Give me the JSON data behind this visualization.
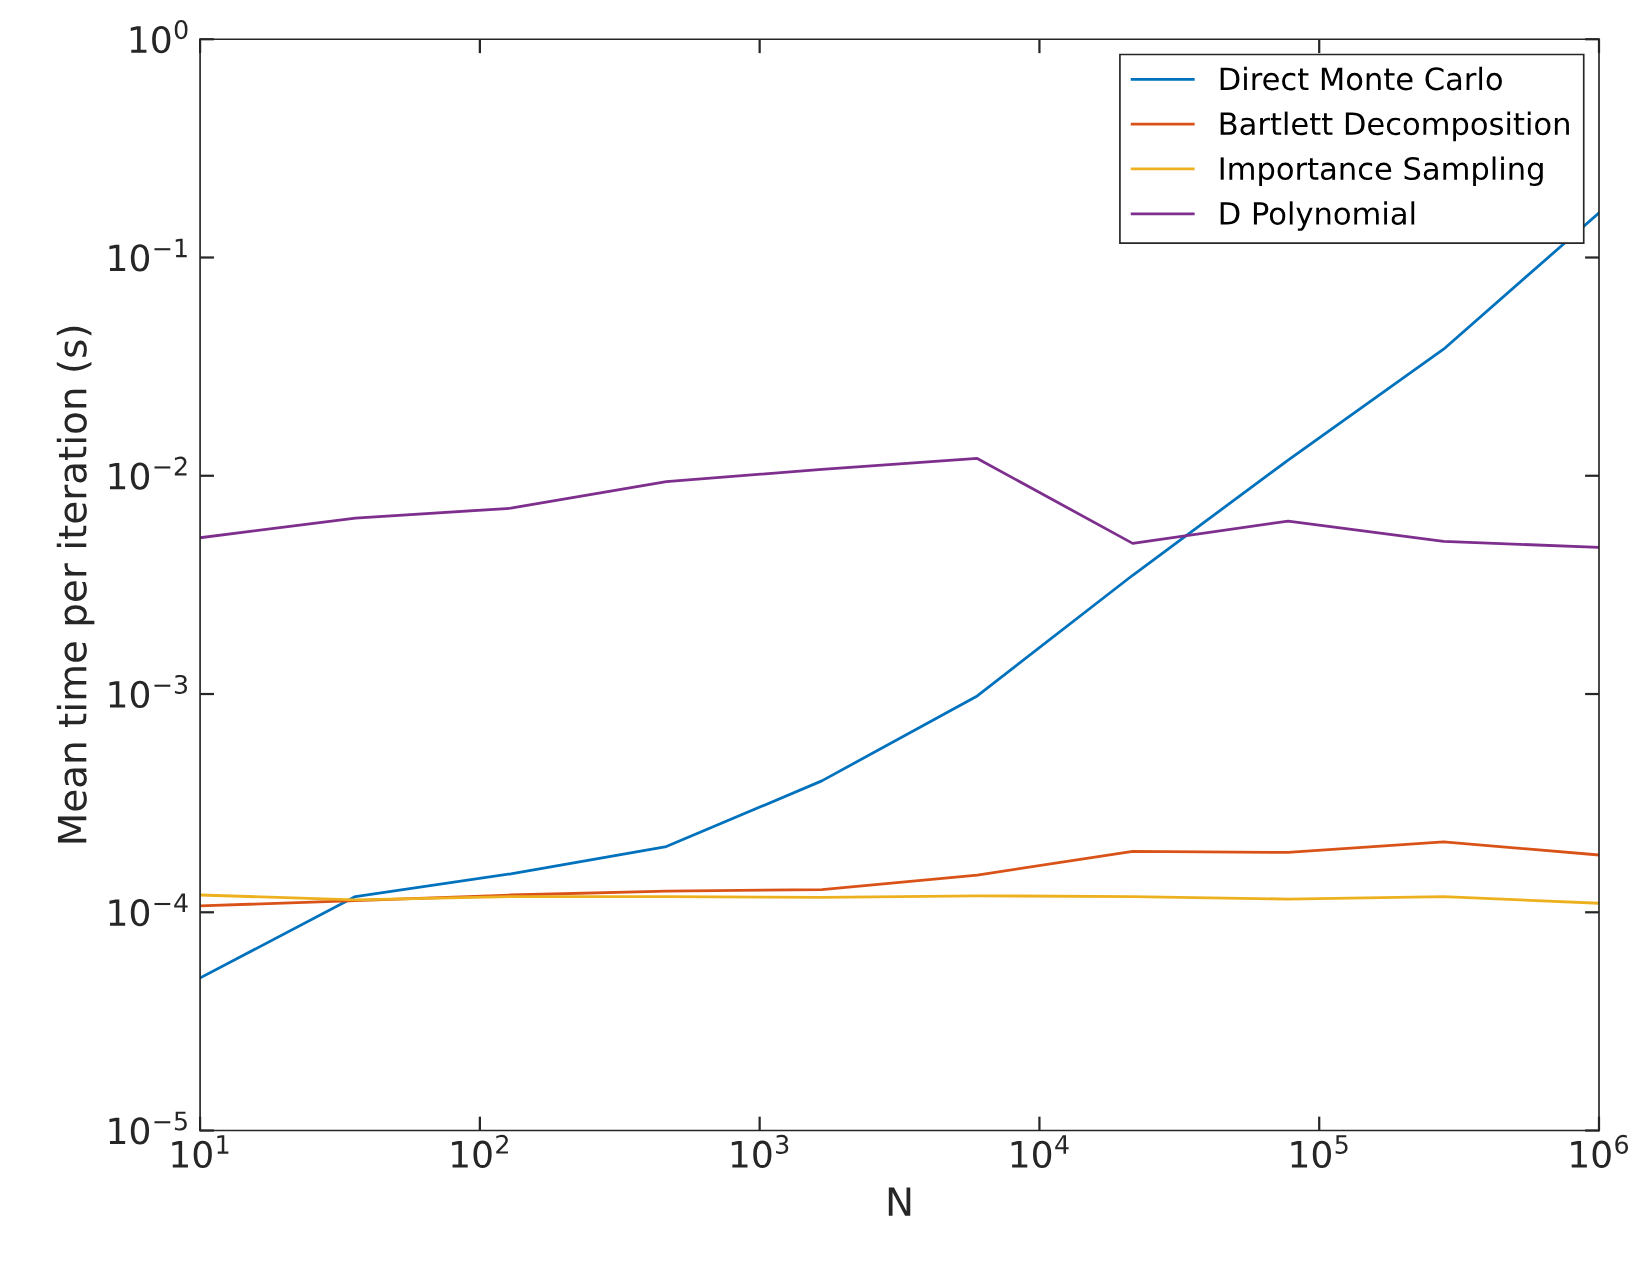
{
  "chart_data": {
    "type": "line",
    "xlabel": "N",
    "ylabel": "Mean time per iteration (s)",
    "log": "xy",
    "grid": false,
    "legend": "top right",
    "x": [
      10,
      35.9,
      129,
      464,
      1668,
      5995,
      21544,
      77426,
      278256,
      1000000
    ],
    "xlim": [
      10,
      1000000
    ],
    "xticks": [
      {
        "value": 10,
        "label": "10$^{1}$"
      },
      {
        "value": 100,
        "label": "10$^{2}$"
      },
      {
        "value": 1000,
        "label": "10$^{3}$"
      },
      {
        "value": 10000,
        "label": "10$^{4}$"
      },
      {
        "value": 100000,
        "label": "10$^{5}$"
      },
      {
        "value": 1000000,
        "label": "10$^{6}$"
      }
    ],
    "ylim": [
      1e-05,
      1
    ],
    "yticks": [
      {
        "value": 1e-05,
        "label": "10$^{−5}$"
      },
      {
        "value": 0.0001,
        "label": "10$^{−4}$"
      },
      {
        "value": 0.001,
        "label": "10$^{−3}$"
      },
      {
        "value": 0.01,
        "label": "10$^{−2}$"
      },
      {
        "value": 0.1,
        "label": "10$^{−1}$"
      },
      {
        "value": 1,
        "label": "10$^{0}$"
      }
    ],
    "series": [
      {
        "name": "Direct Monte Carlo",
        "color": "#0072bd",
        "values": [
          5e-05,
          0.000118,
          0.00015,
          0.0002,
          0.0004,
          0.00098,
          0.0035,
          0.0118,
          0.038,
          0.16
        ]
      },
      {
        "name": "Bartlett Decomposition",
        "color": "#d95319",
        "values": [
          0.000107,
          0.000113,
          0.00012,
          0.000125,
          0.000127,
          0.000148,
          0.00019,
          0.000188,
          0.00021,
          0.000183
        ]
      },
      {
        "name": "Importance Sampling",
        "color": "#edb120",
        "values": [
          0.00012,
          0.000114,
          0.000118,
          0.000118,
          0.000117,
          0.000119,
          0.000118,
          0.000115,
          0.000118,
          0.00011
        ]
      },
      {
        "name": "D Polynomial",
        "color": "#7e2f8e",
        "values": [
          0.0052,
          0.0064,
          0.0071,
          0.0094,
          0.0107,
          0.012,
          0.0049,
          0.0062,
          0.005,
          0.0047
        ]
      }
    ]
  }
}
